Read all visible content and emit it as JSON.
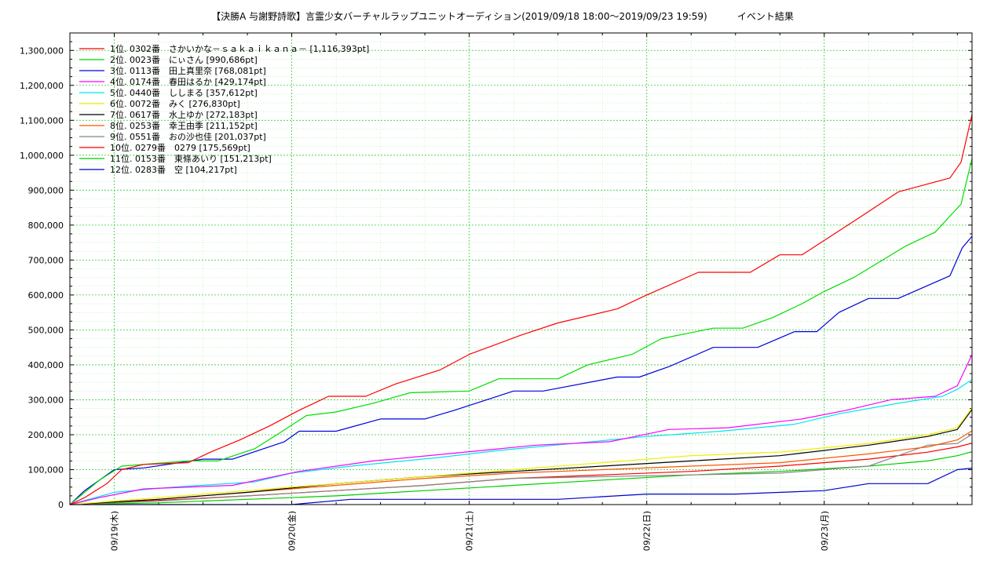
{
  "chart_data": {
    "type": "line",
    "title": "【決勝A 与謝野詩歌】言霊少女バーチャルラップユニットオーディション(2019/09/18 18:00～2019/09/23 19:59)          イベント結果",
    "xlabel": "",
    "ylabel": "",
    "x_range": [
      "2019/09/18 18:00",
      "2019/09/23 19:59"
    ],
    "ylim": [
      0,
      1350000
    ],
    "y_ticks": [
      0,
      100000,
      200000,
      300000,
      400000,
      500000,
      600000,
      700000,
      800000,
      900000,
      1000000,
      1100000,
      1200000,
      1300000
    ],
    "y_tick_labels": [
      "0",
      "100,000",
      "200,000",
      "300,000",
      "400,000",
      "500,000",
      "600,000",
      "700,000",
      "800,000",
      "900,000",
      "1,000,000",
      "1,100,000",
      "1,200,000",
      "1,300,000"
    ],
    "x_tick_labels": [
      "09/19(木)",
      "09/20(金)",
      "09/21(土)",
      "09/22(日)",
      "09/23(月)"
    ],
    "x_tick_dates": [
      "2019/09/19 00:00",
      "2019/09/20 00:00",
      "2019/09/21 00:00",
      "2019/09/22 00:00",
      "2019/09/23 00:00"
    ],
    "grid": true,
    "legend_position": "top-left",
    "series": [
      {
        "name": "1位. 0302番　さかいかな－ｓａｋａｉｋａｎａ－ [1,116,393pt]",
        "color": "#ff0000",
        "x": [
          "2019/09/18 18:00",
          "2019/09/18 20:00",
          "2019/09/18 23:00",
          "2019/09/19 01:00",
          "2019/09/19 04:00",
          "2019/09/19 10:00",
          "2019/09/19 13:00",
          "2019/09/19 17:00",
          "2019/09/19 21:00",
          "2019/09/20 01:00",
          "2019/09/20 05:00",
          "2019/09/20 10:00",
          "2019/09/20 14:00",
          "2019/09/20 20:00",
          "2019/09/21 00:00",
          "2019/09/21 07:00",
          "2019/09/21 12:00",
          "2019/09/21 20:00",
          "2019/09/22 00:00",
          "2019/09/22 07:00",
          "2019/09/22 14:00",
          "2019/09/22 18:00",
          "2019/09/22 21:00",
          "2019/09/23 01:00",
          "2019/09/23 05:00",
          "2019/09/23 10:00",
          "2019/09/23 17:00",
          "2019/09/23 18:30",
          "2019/09/23 19:59"
        ],
        "y": [
          0,
          20000,
          60000,
          100000,
          115000,
          120000,
          150000,
          185000,
          225000,
          270000,
          310000,
          310000,
          345000,
          385000,
          430000,
          485000,
          520000,
          560000,
          600000,
          665000,
          665000,
          715000,
          715000,
          770000,
          825000,
          895000,
          935000,
          980000,
          1116393
        ]
      },
      {
        "name": "2位. 0023番　にぃさん [990,686pt]",
        "color": "#00dd00",
        "x": [
          "2019/09/18 18:00",
          "2019/09/18 22:00",
          "2019/09/19 01:00",
          "2019/09/19 10:00",
          "2019/09/19 14:00",
          "2019/09/19 19:00",
          "2019/09/19 22:00",
          "2019/09/20 02:00",
          "2019/09/20 06:00",
          "2019/09/20 11:00",
          "2019/09/20 16:00",
          "2019/09/21 00:00",
          "2019/09/21 04:00",
          "2019/09/21 12:00",
          "2019/09/21 16:00",
          "2019/09/21 22:00",
          "2019/09/22 02:00",
          "2019/09/22 09:00",
          "2019/09/22 13:00",
          "2019/09/22 17:00",
          "2019/09/22 21:00",
          "2019/09/23 00:00",
          "2019/09/23 04:00",
          "2019/09/23 11:00",
          "2019/09/23 15:00",
          "2019/09/23 18:30",
          "2019/09/23 19:59"
        ],
        "y": [
          0,
          70000,
          110000,
          125000,
          125000,
          160000,
          200000,
          255000,
          265000,
          290000,
          320000,
          325000,
          360000,
          360000,
          400000,
          430000,
          475000,
          505000,
          505000,
          535000,
          575000,
          610000,
          650000,
          740000,
          780000,
          860000,
          990686
        ]
      },
      {
        "name": "3位. 0113番　田上真里奈 [768,081pt]",
        "color": "#0000dd",
        "x": [
          "2019/09/18 18:00",
          "2019/09/18 20:00",
          "2019/09/19 00:00",
          "2019/09/19 04:00",
          "2019/09/19 12:00",
          "2019/09/19 16:00",
          "2019/09/19 23:00",
          "2019/09/20 01:00",
          "2019/09/20 06:00",
          "2019/09/20 12:00",
          "2019/09/20 18:00",
          "2019/09/20 22:00",
          "2019/09/21 06:00",
          "2019/09/21 10:00",
          "2019/09/21 20:00",
          "2019/09/21 23:00",
          "2019/09/22 03:00",
          "2019/09/22 09:00",
          "2019/09/22 15:00",
          "2019/09/22 20:00",
          "2019/09/22 23:00",
          "2019/09/23 02:00",
          "2019/09/23 06:00",
          "2019/09/23 10:00",
          "2019/09/23 17:00",
          "2019/09/23 18:40",
          "2019/09/23 19:59"
        ],
        "y": [
          0,
          40000,
          100000,
          105000,
          130000,
          130000,
          180000,
          210000,
          210000,
          245000,
          245000,
          270000,
          325000,
          325000,
          365000,
          365000,
          395000,
          450000,
          450000,
          495000,
          495000,
          550000,
          590000,
          590000,
          655000,
          735000,
          768081
        ]
      },
      {
        "name": "4位. 0174番　春田はるか [429,174pt]",
        "color": "#ff00ff",
        "x": [
          "2019/09/18 18:00",
          "2019/09/18 22:00",
          "2019/09/19 04:00",
          "2019/09/19 16:00",
          "2019/09/20 01:00",
          "2019/09/20 11:00",
          "2019/09/20 21:00",
          "2019/09/21 09:00",
          "2019/09/21 19:00",
          "2019/09/22 03:00",
          "2019/09/22 11:00",
          "2019/09/22 21:00",
          "2019/09/23 03:00",
          "2019/09/23 09:00",
          "2019/09/23 15:00",
          "2019/09/23 18:00",
          "2019/09/23 19:59"
        ],
        "y": [
          0,
          20000,
          45000,
          55000,
          95000,
          125000,
          145000,
          170000,
          180000,
          215000,
          220000,
          245000,
          270000,
          300000,
          310000,
          340000,
          429174
        ]
      },
      {
        "name": "5位. 0440番　ししまる [357,612pt]",
        "color": "#00e5ee",
        "x": [
          "2019/09/18 18:00",
          "2019/09/19 00:00",
          "2019/09/19 08:00",
          "2019/09/19 19:00",
          "2019/09/20 00:00",
          "2019/09/20 08:00",
          "2019/09/20 20:00",
          "2019/09/21 04:00",
          "2019/09/21 14:00",
          "2019/09/22 00:00",
          "2019/09/22 10:00",
          "2019/09/22 20:00",
          "2019/09/23 02:00",
          "2019/09/23 10:00",
          "2019/09/23 16:00",
          "2019/09/23 18:00",
          "2019/09/23 19:59"
        ],
        "y": [
          0,
          35000,
          50000,
          65000,
          90000,
          110000,
          135000,
          155000,
          175000,
          195000,
          210000,
          230000,
          260000,
          290000,
          310000,
          330000,
          357612
        ]
      },
      {
        "name": "6位. 0072番　みく [276,830pt]",
        "color": "#eeee00",
        "x": [
          "2019/09/18 18:00",
          "2019/09/19 06:00",
          "2019/09/19 18:00",
          "2019/09/20 06:00",
          "2019/09/20 18:00",
          "2019/09/21 06:00",
          "2019/09/21 18:00",
          "2019/09/22 06:00",
          "2019/09/22 18:00",
          "2019/09/23 06:00",
          "2019/09/23 14:00",
          "2019/09/23 18:00",
          "2019/09/23 19:59"
        ],
        "y": [
          0,
          20000,
          40000,
          60000,
          80000,
          100000,
          120000,
          140000,
          150000,
          175000,
          200000,
          220000,
          276830
        ]
      },
      {
        "name": "7位. 0617番　水上ゆか [272,183pt]",
        "color": "#000000",
        "x": [
          "2019/09/18 18:00",
          "2019/09/19 06:00",
          "2019/09/19 18:00",
          "2019/09/20 06:00",
          "2019/09/20 18:00",
          "2019/09/21 06:00",
          "2019/09/21 18:00",
          "2019/09/22 06:00",
          "2019/09/22 18:00",
          "2019/09/23 06:00",
          "2019/09/23 14:00",
          "2019/09/23 18:00",
          "2019/09/23 19:59"
        ],
        "y": [
          0,
          15000,
          35000,
          60000,
          80000,
          95000,
          110000,
          125000,
          140000,
          170000,
          195000,
          215000,
          272183
        ]
      },
      {
        "name": "8位. 0253番　幸王由季 [211,152pt]",
        "color": "#ff5500",
        "x": [
          "2019/09/18 18:00",
          "2019/09/19 06:00",
          "2019/09/19 18:00",
          "2019/09/20 06:00",
          "2019/09/20 18:00",
          "2019/09/21 06:00",
          "2019/09/21 18:00",
          "2019/09/22 06:00",
          "2019/09/22 18:00",
          "2019/09/23 06:00",
          "2019/09/23 14:00",
          "2019/09/23 18:00",
          "2019/09/23 19:59"
        ],
        "y": [
          0,
          15000,
          35000,
          55000,
          75000,
          90000,
          100000,
          110000,
          120000,
          145000,
          165000,
          185000,
          211152
        ]
      },
      {
        "name": "9位. 0551番　おの沙也佳 [201,037pt]",
        "color": "#888888",
        "x": [
          "2019/09/18 18:00",
          "2019/09/19 06:00",
          "2019/09/19 18:00",
          "2019/09/20 06:00",
          "2019/09/20 18:00",
          "2019/09/21 06:00",
          "2019/09/21 18:00",
          "2019/09/22 06:00",
          "2019/09/22 18:00",
          "2019/09/23 06:00",
          "2019/09/23 14:00",
          "2019/09/23 18:00",
          "2019/09/23 19:59"
        ],
        "y": [
          0,
          10000,
          25000,
          40000,
          55000,
          75000,
          80000,
          85000,
          90000,
          110000,
          170000,
          175000,
          201037
        ]
      },
      {
        "name": "10位. 0279番　0279 [175,569pt]",
        "color": "#ff0000",
        "x": [
          "2019/09/18 18:00",
          "2019/09/19 06:00",
          "2019/09/19 18:00",
          "2019/09/20 06:00",
          "2019/09/20 18:00",
          "2019/09/21 06:00",
          "2019/09/21 18:00",
          "2019/09/22 06:00",
          "2019/09/22 18:00",
          "2019/09/23 06:00",
          "2019/09/23 14:00",
          "2019/09/23 18:00",
          "2019/09/23 19:59"
        ],
        "y": [
          0,
          12000,
          25000,
          40000,
          55000,
          75000,
          85000,
          95000,
          110000,
          130000,
          150000,
          165000,
          175569
        ]
      },
      {
        "name": "11位. 0153番　東條あいり [151,213pt]",
        "color": "#00cc00",
        "x": [
          "2019/09/18 18:00",
          "2019/09/19 06:00",
          "2019/09/19 18:00",
          "2019/09/20 06:00",
          "2019/09/20 18:00",
          "2019/09/21 06:00",
          "2019/09/21 18:00",
          "2019/09/22 06:00",
          "2019/09/22 18:00",
          "2019/09/23 06:00",
          "2019/09/23 14:00",
          "2019/09/23 18:00",
          "2019/09/23 19:59"
        ],
        "y": [
          0,
          5000,
          15000,
          25000,
          40000,
          55000,
          70000,
          85000,
          95000,
          110000,
          125000,
          140000,
          151213
        ]
      },
      {
        "name": "12位. 0283番　空 [104,217pt]",
        "color": "#0000cc",
        "x": [
          "2019/09/18 18:00",
          "2019/09/19 18:00",
          "2019/09/20 00:00",
          "2019/09/20 08:00",
          "2019/09/21 00:00",
          "2019/09/21 12:00",
          "2019/09/22 00:00",
          "2019/09/22 12:00",
          "2019/09/23 00:00",
          "2019/09/23 06:00",
          "2019/09/23 14:00",
          "2019/09/23 18:00",
          "2019/09/23 19:59"
        ],
        "y": [
          0,
          0,
          0,
          15000,
          15000,
          15000,
          30000,
          30000,
          40000,
          60000,
          60000,
          100000,
          104217
        ]
      }
    ]
  }
}
